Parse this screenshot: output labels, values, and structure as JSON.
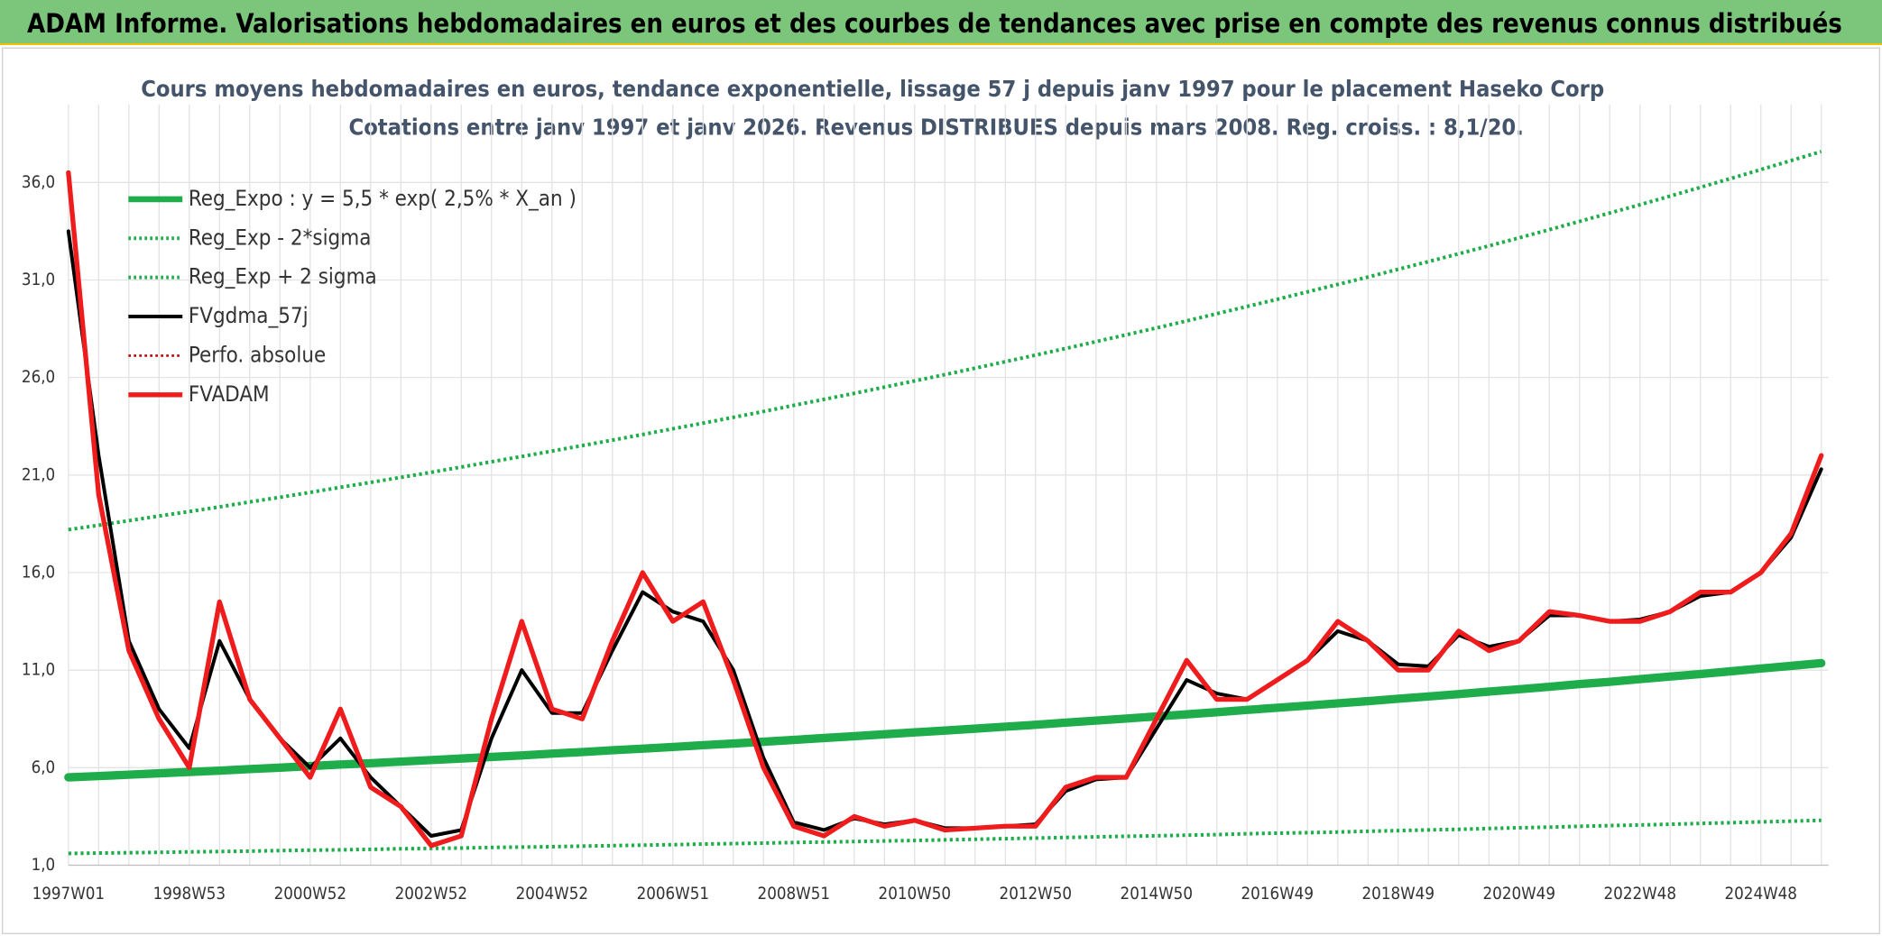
{
  "header": {
    "title": "ADAM Informe. Valorisations hebdomadaires en euros et des courbes de tendances avec prise en compte des revenus connus distribués"
  },
  "chart_data": {
    "type": "line",
    "title": "Cours moyens hebdomadaires en euros, tendance exponentielle, lissage 57 j depuis janv 1997 pour le placement Haseko Corp",
    "subtitle": "Cotations entre janv 1997 et janv 2026. Revenus DISTRIBUES depuis mars 2008. Reg. croiss. : 8,1/20.",
    "categories": [
      "1997W01",
      null,
      null,
      null,
      "1998W53",
      null,
      null,
      null,
      "2000W52",
      null,
      null,
      null,
      "2002W52",
      null,
      null,
      null,
      "2004W52",
      null,
      null,
      null,
      "2006W51",
      null,
      null,
      null,
      "2008W51",
      null,
      null,
      null,
      "2010W50",
      null,
      null,
      null,
      "2012W50",
      null,
      null,
      null,
      "2014W50",
      null,
      null,
      null,
      "2016W49",
      null,
      null,
      null,
      "2018W49",
      null,
      null,
      null,
      "2020W49",
      null,
      null,
      null,
      "2022W48",
      null,
      null,
      null,
      "2024W48",
      null,
      null
    ],
    "ylim": [
      1,
      40
    ],
    "yticks": [
      {
        "value": 1,
        "label": "1,0"
      },
      {
        "value": 6,
        "label": "6,0"
      },
      {
        "value": 11,
        "label": "11,0"
      },
      {
        "value": 16,
        "label": "16,0"
      },
      {
        "value": 21,
        "label": "21,0"
      },
      {
        "value": 26,
        "label": "26,0"
      },
      {
        "value": 31,
        "label": "31,0"
      },
      {
        "value": 36,
        "label": "36,0"
      }
    ],
    "grid": true,
    "legend": "top-left",
    "series": [
      {
        "name": "Reg_Expo : y = 5,5 * exp( 2,5% *  X_an )",
        "color": "#1fad4b",
        "style": "solid",
        "width": 7,
        "values": [
          5.5,
          5.57,
          5.64,
          5.71,
          5.78,
          5.85,
          5.93,
          6.0,
          6.08,
          6.16,
          6.23,
          6.31,
          6.39,
          6.47,
          6.55,
          6.63,
          6.72,
          6.8,
          6.89,
          6.97,
          7.06,
          7.15,
          7.24,
          7.33,
          7.42,
          7.52,
          7.61,
          7.71,
          7.81,
          7.9,
          8.0,
          8.1,
          8.2,
          8.31,
          8.41,
          8.52,
          8.63,
          8.73,
          8.84,
          8.96,
          9.07,
          9.18,
          9.3,
          9.41,
          9.53,
          9.65,
          9.77,
          9.9,
          10.02,
          10.15,
          10.28,
          10.4,
          10.54,
          10.67,
          10.8,
          10.94,
          11.08,
          11.22,
          11.36
        ]
      },
      {
        "name": "Reg_Exp - 2*sigma",
        "color": "#1fad4b",
        "style": "dotted",
        "width": 3,
        "values": [
          1.6,
          1.62,
          1.64,
          1.66,
          1.68,
          1.7,
          1.72,
          1.75,
          1.77,
          1.79,
          1.81,
          1.84,
          1.86,
          1.88,
          1.91,
          1.93,
          1.95,
          1.98,
          2.0,
          2.03,
          2.05,
          2.08,
          2.11,
          2.13,
          2.16,
          2.19,
          2.21,
          2.24,
          2.27,
          2.3,
          2.33,
          2.36,
          2.39,
          2.42,
          2.45,
          2.48,
          2.51,
          2.54,
          2.57,
          2.61,
          2.64,
          2.67,
          2.7,
          2.74,
          2.77,
          2.81,
          2.84,
          2.88,
          2.92,
          2.95,
          2.99,
          3.03,
          3.06,
          3.1,
          3.14,
          3.18,
          3.22,
          3.26,
          3.3
        ]
      },
      {
        "name": "Reg_Exp + 2 sigma",
        "color": "#1fad4b",
        "style": "dotted",
        "width": 3,
        "values": [
          18.2,
          18.43,
          18.66,
          18.9,
          19.13,
          19.37,
          19.62,
          19.86,
          20.11,
          20.37,
          20.62,
          20.88,
          21.14,
          21.41,
          21.68,
          21.95,
          22.23,
          22.51,
          22.79,
          23.08,
          23.37,
          23.66,
          23.96,
          24.26,
          24.57,
          24.88,
          25.19,
          25.51,
          25.83,
          26.15,
          26.48,
          26.81,
          27.15,
          27.49,
          27.84,
          28.19,
          28.54,
          28.9,
          29.27,
          29.64,
          30.01,
          30.39,
          30.77,
          31.15,
          31.55,
          31.94,
          32.34,
          32.75,
          33.16,
          33.58,
          34.0,
          34.43,
          34.86,
          35.3,
          35.75,
          36.2,
          36.66,
          37.12,
          37.58
        ]
      },
      {
        "name": "FVgdma_57j",
        "color": "#000000",
        "style": "solid",
        "width": 3,
        "values": [
          33.5,
          22,
          12.5,
          9,
          7,
          12.5,
          9.5,
          7.5,
          6.0,
          7.5,
          5.5,
          4.0,
          2.5,
          2.8,
          7.5,
          11,
          8.8,
          8.8,
          12,
          15,
          14,
          13.5,
          11,
          6.5,
          3.2,
          2.8,
          3.4,
          3.1,
          3.3,
          2.9,
          2.9,
          3.0,
          3.1,
          4.8,
          5.4,
          5.5,
          8.0,
          10.5,
          9.8,
          9.5,
          10.5,
          11.5,
          13,
          12.5,
          11.3,
          11.2,
          12.8,
          12.2,
          12.5,
          13.8,
          13.8,
          13.5,
          13.6,
          14.0,
          14.8,
          15.0,
          16.0,
          17.8,
          21.3
        ]
      },
      {
        "name": "Perfo. absolue",
        "color": "#c00000",
        "style": "dotted",
        "width": 2,
        "values": [
          null,
          null,
          null,
          null,
          null,
          null,
          null,
          null,
          null,
          null,
          null,
          null,
          null,
          null,
          null,
          null,
          null,
          null,
          null,
          null,
          null,
          null,
          null,
          null,
          null,
          null,
          null,
          null,
          null,
          null,
          null,
          null,
          null,
          null,
          null,
          null,
          null,
          null,
          null,
          null,
          null,
          null,
          null,
          null,
          null,
          null,
          null,
          null,
          null,
          null,
          null,
          null,
          null,
          null,
          null,
          null,
          null,
          null,
          null
        ]
      },
      {
        "name": "FVADAM",
        "color": "#ee1c1c",
        "style": "solid",
        "width": 4,
        "values": [
          36.5,
          20,
          12,
          8.5,
          6.0,
          14.5,
          9.5,
          7.5,
          5.5,
          9.0,
          5.0,
          4.0,
          2.0,
          2.5,
          8.5,
          13.5,
          9.0,
          8.5,
          12.5,
          16.0,
          13.5,
          14.5,
          10.5,
          6.0,
          3.0,
          2.5,
          3.5,
          3.0,
          3.3,
          2.8,
          2.9,
          3.0,
          3.0,
          5.0,
          5.5,
          5.5,
          8.5,
          11.5,
          9.5,
          9.5,
          10.5,
          11.5,
          13.5,
          12.5,
          11.0,
          11.0,
          13.0,
          12.0,
          12.5,
          14.0,
          13.8,
          13.5,
          13.5,
          14.0,
          15.0,
          15.0,
          16.0,
          18.0,
          22.0
        ]
      }
    ]
  }
}
